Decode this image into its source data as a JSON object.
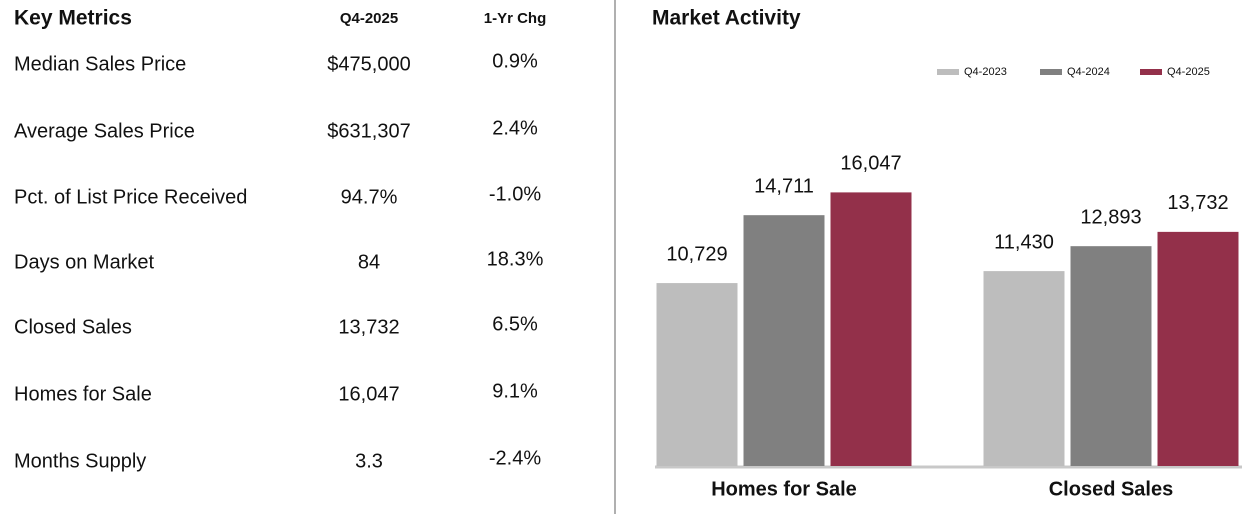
{
  "table": {
    "title": "Key Metrics",
    "columns": [
      "Q4-2025",
      "1-Yr Chg"
    ],
    "rows": [
      [
        "Median Sales Price",
        "$475,000",
        "0.9%"
      ],
      [
        "Average Sales Price",
        "$631,307",
        "2.4%"
      ],
      [
        "Pct. of List Price Received",
        "94.7%",
        "-1.0%"
      ],
      [
        "Days on Market",
        "84",
        "18.3%"
      ],
      [
        "Closed Sales",
        "13,732",
        "6.5%"
      ],
      [
        "Homes for Sale",
        "16,047",
        "9.1%"
      ],
      [
        "Months Supply",
        "3.3",
        "-2.4%"
      ]
    ]
  },
  "chart_data": {
    "type": "bar",
    "title": "Market Activity",
    "categories": [
      "Homes for Sale",
      "Closed Sales"
    ],
    "series": [
      {
        "name": "Q4-2023",
        "color": "#bdbdbd",
        "values": [
          10729,
          11430
        ],
        "value_labels": [
          "10,729",
          "11,430"
        ]
      },
      {
        "name": "Q4-2024",
        "color": "#808080",
        "values": [
          14711,
          12893
        ],
        "value_labels": [
          "14,711",
          "12,893"
        ]
      },
      {
        "name": "Q4-2025",
        "color": "#93304a",
        "values": [
          16047,
          13732
        ],
        "value_labels": [
          "16,047",
          "13,732"
        ]
      }
    ],
    "ylim": [
      0,
      20000
    ]
  }
}
